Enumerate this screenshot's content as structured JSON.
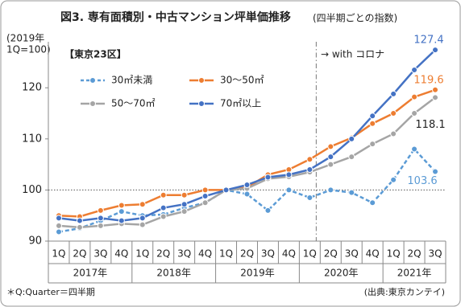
{
  "chart_data": {
    "type": "line",
    "title": "図3. 専有面積別・中古マンション坪単価推移",
    "subtitle": "(四半期ごとの指数)",
    "y_label": [
      "(2019年",
      "1Q=100)"
    ],
    "region": "【東京23区】",
    "annotation": "→ with コロナ",
    "footnote": "＊Q:Quarter＝四半期",
    "source": "(出典:東京カンテイ)",
    "categories": [
      "1Q",
      "2Q",
      "3Q",
      "4Q",
      "1Q",
      "2Q",
      "3Q",
      "4Q",
      "1Q",
      "2Q",
      "3Q",
      "4Q",
      "1Q",
      "2Q",
      "3Q",
      "4Q",
      "1Q",
      "2Q",
      "3Q"
    ],
    "year_groups": [
      "2017年",
      "2018年",
      "2019年",
      "2020年",
      "2021年"
    ],
    "ylim": [
      90,
      129
    ],
    "yticks": [
      90,
      100,
      110,
      120
    ],
    "reference_line": 100,
    "series": [
      {
        "name": "30㎡未満",
        "color": "#5b9bd5",
        "line_style": "dashed",
        "label_color": "#5b9bd5",
        "values": [
          91.8,
          92.5,
          94,
          95.8,
          95,
          95.2,
          96.5,
          97.5,
          100,
          99.2,
          96,
          100,
          98.5,
          100,
          99.5,
          97.5,
          102,
          108,
          103.6
        ]
      },
      {
        "name": "30〜50㎡",
        "color": "#ed7d31",
        "line_style": "solid",
        "label_color": "#ed7d31",
        "values": [
          95,
          94.8,
          96,
          97,
          97.2,
          99,
          99,
          100,
          100,
          100.5,
          103,
          104,
          106,
          108.5,
          110.2,
          113,
          115,
          118.2,
          119.6
        ]
      },
      {
        "name": "50〜70㎡",
        "color": "#a5a5a5",
        "line_style": "solid",
        "label_color": "#222222",
        "values": [
          93,
          92.7,
          93,
          93.4,
          93.2,
          94.8,
          95.8,
          97.5,
          100,
          100.3,
          102.2,
          102.6,
          103.5,
          105,
          106.5,
          109,
          111,
          115,
          118.1
        ]
      },
      {
        "name": "70㎡以上",
        "color": "#4472c4",
        "line_style": "solid",
        "label_color": "#4472c4",
        "values": [
          94.5,
          94,
          94.5,
          94,
          94.5,
          96.5,
          97.2,
          98.8,
          100,
          101,
          102.5,
          103,
          104,
          106.5,
          110,
          114.5,
          118.8,
          123.5,
          127.4
        ]
      }
    ]
  }
}
